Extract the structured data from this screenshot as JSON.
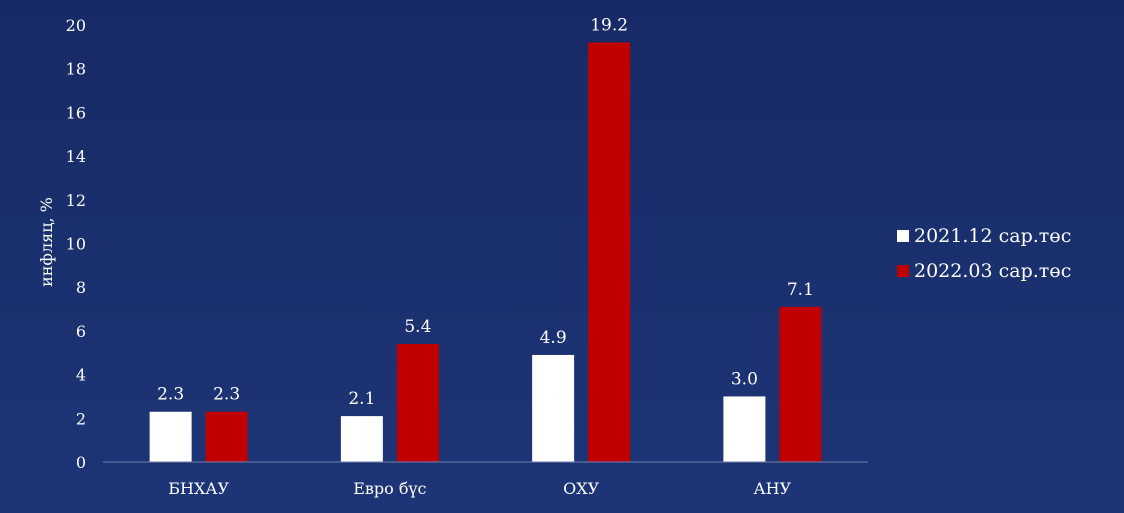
{
  "chart_data": {
    "type": "bar",
    "categories": [
      "БНХАУ",
      "Евро бүс",
      "ОХУ",
      "АНУ"
    ],
    "series": [
      {
        "name": "2021.12 сар.төс",
        "values": [
          2.3,
          2.1,
          4.9,
          3.0
        ],
        "labels": [
          "2.3",
          "2.1",
          "4.9",
          "3.0"
        ],
        "color": "#ffffff"
      },
      {
        "name": "2022.03 сар.төс",
        "values": [
          2.3,
          5.4,
          19.2,
          7.1
        ],
        "labels": [
          "2.3",
          "5.4",
          "19.2",
          "7.1"
        ],
        "color": "#c00000"
      }
    ],
    "title": "",
    "xlabel": "",
    "ylabel": "инфляц, %",
    "ylim": [
      0,
      20
    ],
    "yticks": [
      "0",
      "2",
      "4",
      "6",
      "8",
      "10",
      "12",
      "14",
      "16",
      "18",
      "20"
    ],
    "grid": false,
    "legend_position": "right"
  },
  "colors": {
    "axis": "#6f7fa8"
  }
}
